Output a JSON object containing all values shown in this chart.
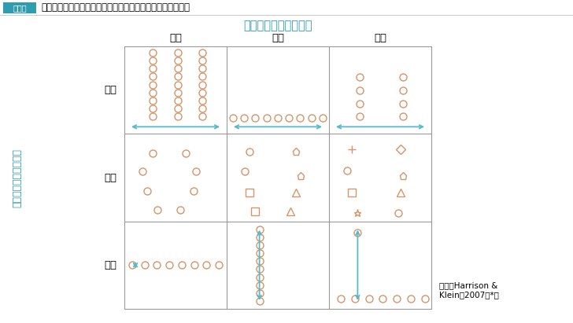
{
  "title_box": "図表２",
  "title_text": "３種類のグループ内ダイバーシティとその程度のイメージ図",
  "col_header_title": "ダイバーシティの程度",
  "col_headers": [
    "最小",
    "中常",
    "最大"
  ],
  "row_headers": [
    "分離",
    "多様",
    "格差"
  ],
  "y_axis_label": "ダイバーシティの種類",
  "source": "出所：Harrison &\nKlein（2007）*５",
  "symbol_color": "#d4956a",
  "arrow_color": "#5ab8c8",
  "grid_color": "#999999",
  "header_color": "#2e9db0",
  "title_box_bg": "#2e9db0",
  "title_box_fg": "#ffffff"
}
